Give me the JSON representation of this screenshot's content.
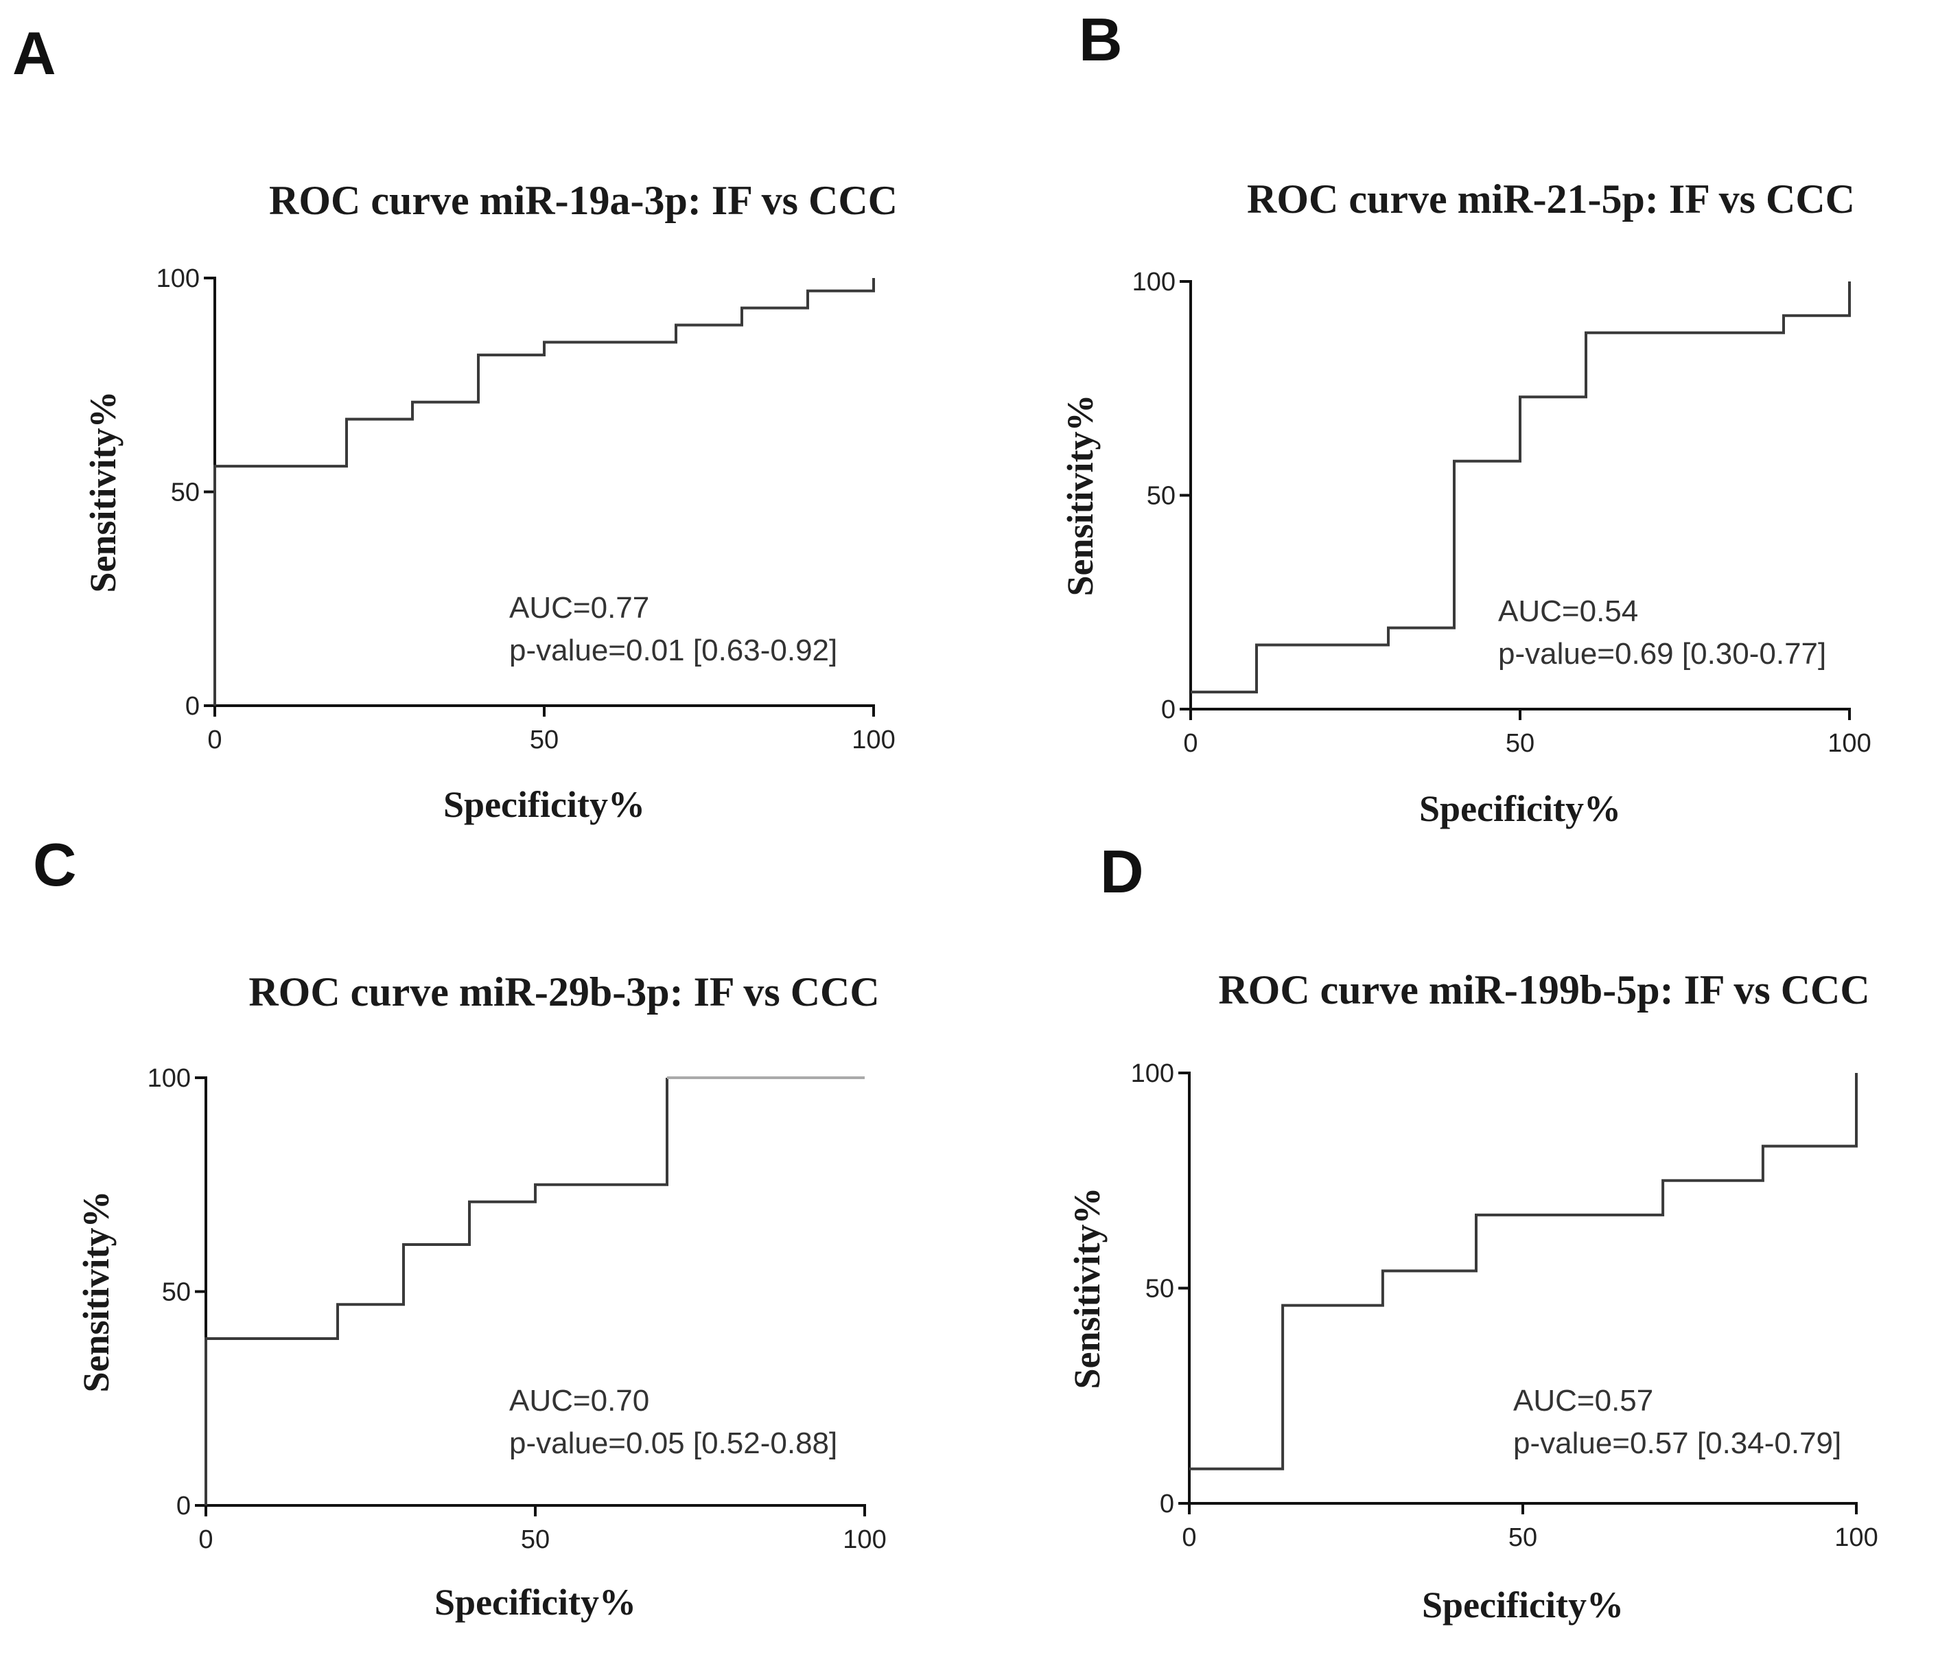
{
  "chart_data": [
    {
      "type": "line",
      "panel": "A",
      "title": "ROC curve miR-19a-3p: IF vs CCC",
      "xlabel": "Specificity%",
      "ylabel": "Sensitivity%",
      "xlim": [
        0,
        100
      ],
      "ylim": [
        0,
        100
      ],
      "xticks": [
        0,
        50,
        100
      ],
      "yticks": [
        0,
        50,
        100
      ],
      "auc_text": "AUC=0.77",
      "p_text": "p-value=0.01 [0.63-0.92]",
      "series": [
        {
          "name": "ROC",
          "x": [
            0,
            0,
            20,
            20,
            30,
            30,
            40,
            40,
            50,
            50,
            70,
            70,
            80,
            80,
            90,
            90,
            100,
            100
          ],
          "y": [
            0,
            56,
            56,
            67,
            67,
            71,
            71,
            82,
            82,
            85,
            85,
            89,
            89,
            93,
            93,
            97,
            97,
            100
          ]
        }
      ]
    },
    {
      "type": "line",
      "panel": "B",
      "title": "ROC curve miR-21-5p: IF vs CCC",
      "xlabel": "Specificity%",
      "ylabel": "Sensitivity%",
      "xlim": [
        0,
        100
      ],
      "ylim": [
        0,
        100
      ],
      "xticks": [
        0,
        50,
        100
      ],
      "yticks": [
        0,
        50,
        100
      ],
      "auc_text": "AUC=0.54",
      "p_text": "p-value=0.69 [0.30-0.77]",
      "series": [
        {
          "name": "ROC",
          "x": [
            0,
            10,
            10,
            30,
            30,
            40,
            40,
            50,
            50,
            60,
            60,
            90,
            90,
            100,
            100
          ],
          "y": [
            4,
            4,
            15,
            15,
            19,
            19,
            58,
            58,
            73,
            73,
            88,
            88,
            92,
            92,
            100
          ]
        }
      ]
    },
    {
      "type": "line",
      "panel": "C",
      "title": "ROC curve miR-29b-3p: IF vs CCC",
      "xlabel": "Specificity%",
      "ylabel": "Sensitivity%",
      "xlim": [
        0,
        100
      ],
      "ylim": [
        0,
        100
      ],
      "xticks": [
        0,
        50,
        100
      ],
      "yticks": [
        0,
        50,
        100
      ],
      "auc_text": "AUC=0.70",
      "p_text": "p-value=0.05 [0.52-0.88]",
      "series": [
        {
          "name": "ROC",
          "x": [
            0,
            0,
            20,
            20,
            30,
            30,
            40,
            40,
            50,
            50,
            70,
            70,
            100
          ],
          "y": [
            0,
            39,
            39,
            47,
            47,
            61,
            61,
            71,
            71,
            75,
            75,
            100,
            100
          ]
        }
      ]
    },
    {
      "type": "line",
      "panel": "D",
      "title": "ROC curve miR-199b-5p: IF vs CCC",
      "xlabel": "Specificity%",
      "ylabel": "Sensitivity%",
      "xlim": [
        0,
        100
      ],
      "ylim": [
        0,
        100
      ],
      "xticks": [
        0,
        50,
        100
      ],
      "yticks": [
        0,
        50,
        100
      ],
      "auc_text": "AUC=0.57",
      "p_text": "p-value=0.57 [0.34-0.79]",
      "series": [
        {
          "name": "ROC",
          "x": [
            0,
            14,
            14,
            29,
            29,
            43,
            43,
            71,
            71,
            86,
            86,
            100,
            100
          ],
          "y": [
            8,
            8,
            46,
            46,
            54,
            54,
            67,
            67,
            75,
            75,
            83,
            83,
            100
          ]
        }
      ]
    }
  ]
}
